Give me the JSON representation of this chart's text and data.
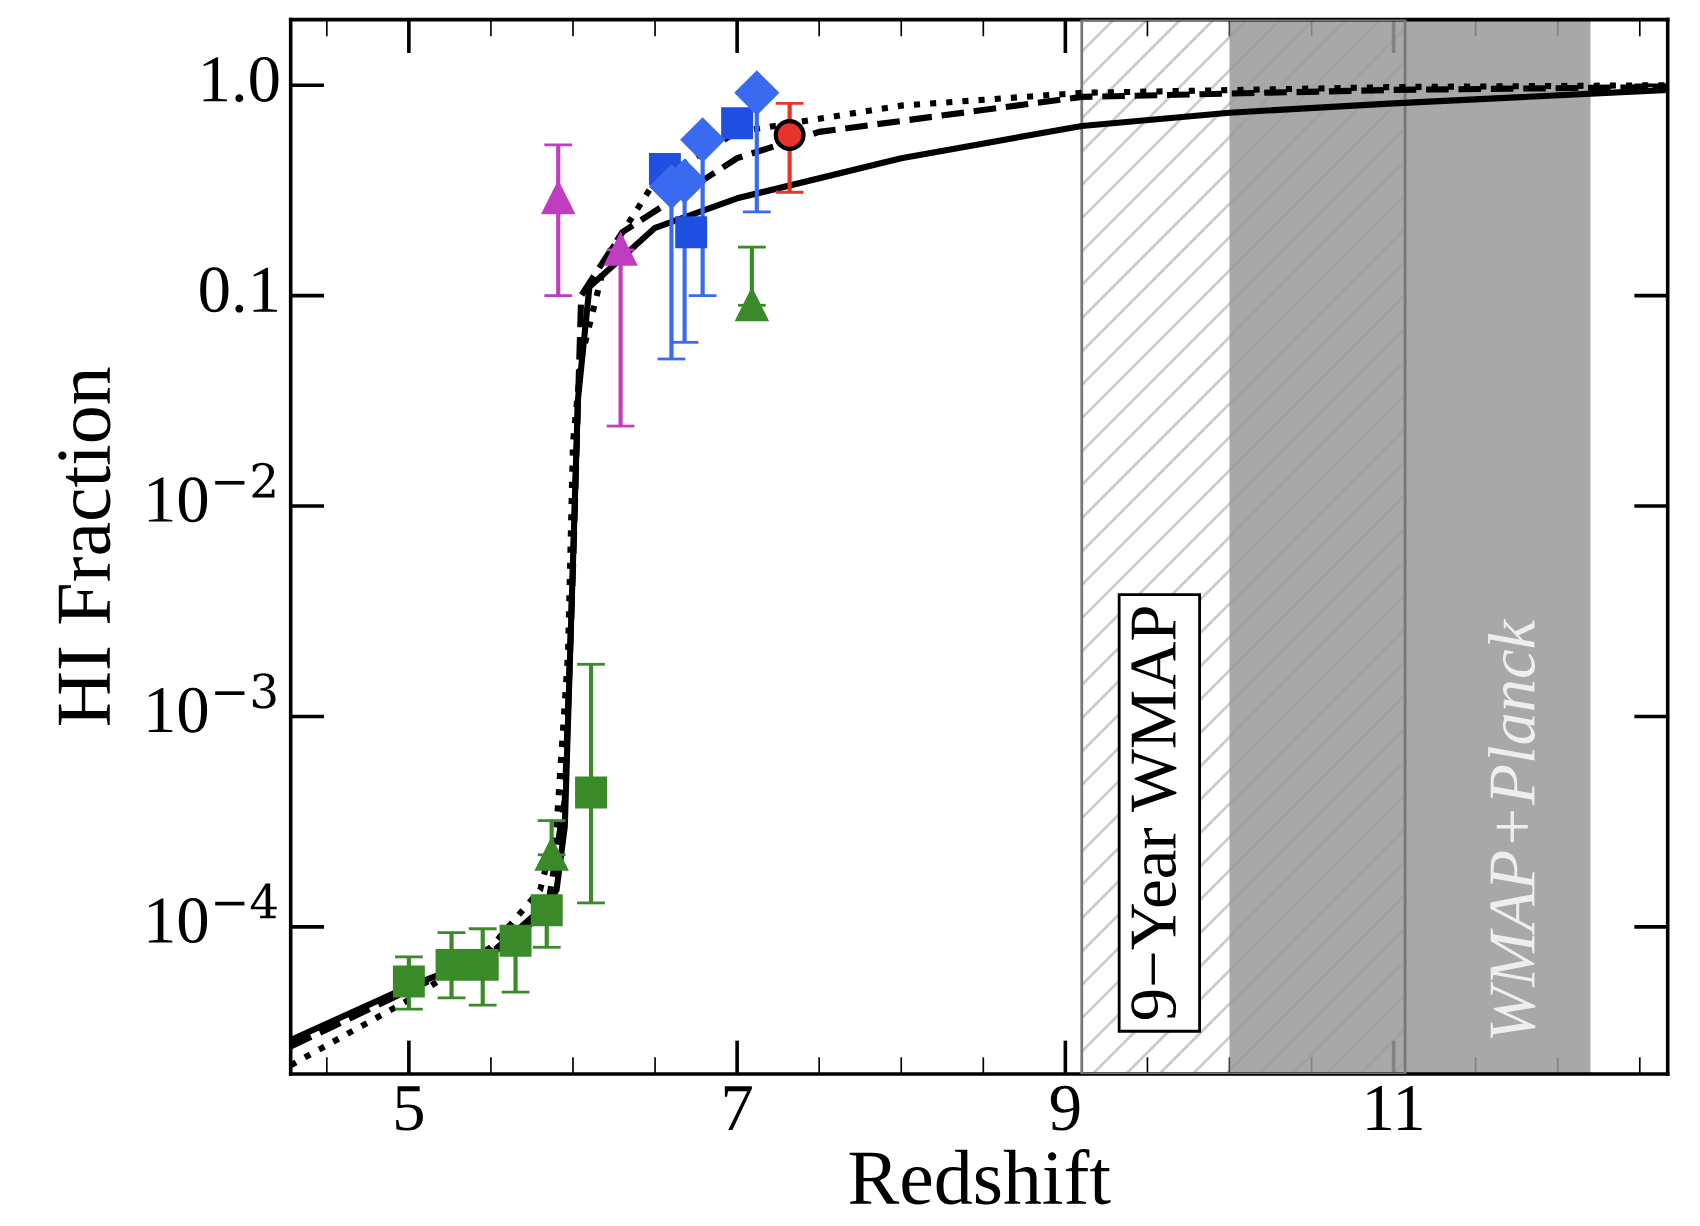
{
  "chart_data": {
    "type": "line",
    "xlabel": "Redshift",
    "ylabel": "HI Fraction",
    "log": "y",
    "grid": false,
    "legend": false,
    "xlim": [
      4.28,
      12.67
    ],
    "ylim": [
      2e-05,
      2.05
    ],
    "xticks": [
      {
        "value": 4.5,
        "label": null
      },
      5,
      {
        "value": 5.5,
        "label": null
      },
      {
        "value": 6,
        "label": null
      },
      {
        "value": 6.5,
        "label": null
      },
      7,
      {
        "value": 7.5,
        "label": null
      },
      {
        "value": 8,
        "label": null
      },
      {
        "value": 8.5,
        "label": null
      },
      9,
      {
        "value": 9.5,
        "label": null
      },
      {
        "value": 10,
        "label": null
      },
      {
        "value": 10.5,
        "label": null
      },
      11,
      {
        "value": 11.5,
        "label": null
      },
      {
        "value": 12,
        "label": null
      },
      {
        "value": 12.5,
        "label": null
      }
    ],
    "yticks": [
      {
        "value": 0.0001,
        "label": "10$^{−4}$"
      },
      {
        "value": 0.001,
        "label": "10$^{−3}$"
      },
      {
        "value": 0.01,
        "label": "10$^{−2}$"
      },
      {
        "value": 0.1,
        "label": "0.1"
      },
      {
        "value": 1,
        "label": "1.0"
      }
    ],
    "bands": [
      {
        "axis": "x",
        "from": 9.1,
        "to": 11.07,
        "label": "9−Year WMAP",
        "color": "#ffffff"
      },
      {
        "axis": "x",
        "from": 10.0,
        "to": 12.2,
        "label": "WMAP+Planck",
        "color": "#999999"
      }
    ],
    "series": [
      {
        "color": "#000000",
        "line_style": "solid",
        "marker": "none",
        "x": [
          4.28,
          5.0,
          5.5,
          5.8,
          5.9,
          5.95,
          6.0,
          6.03,
          6.1,
          6.5,
          7.0,
          8.0,
          9.1,
          10.0,
          11.0,
          12.67
        ],
        "values": [
          2.9e-05,
          5.2e-05,
          7.4e-05,
          0.000112,
          0.00015,
          0.0003,
          0.0055,
          0.032,
          0.11,
          0.21,
          0.29,
          0.45,
          0.64,
          0.74,
          0.82,
          0.95
        ]
      },
      {
        "color": "#000000",
        "line_style": "dashed",
        "marker": "none",
        "x": [
          4.28,
          5.0,
          5.5,
          5.85,
          5.95,
          6.0,
          6.05,
          6.3,
          7.0,
          7.5,
          9.1,
          11.0,
          12.67
        ],
        "values": [
          2.7e-05,
          5e-05,
          7.5e-05,
          0.00013,
          0.0004,
          0.005,
          0.1,
          0.2,
          0.45,
          0.6,
          0.88,
          0.95,
          0.98
        ]
      },
      {
        "color": "#000000",
        "line_style": "dotted",
        "marker": "none",
        "x": [
          4.28,
          5.0,
          5.5,
          5.8,
          5.9,
          5.97,
          6.0,
          6.05,
          6.2,
          6.5,
          7.0,
          8.0,
          9.1,
          11.0,
          12.67
        ],
        "values": [
          2.2e-05,
          4.5e-05,
          8e-05,
          0.00015,
          0.0003,
          0.002,
          0.02,
          0.05,
          0.15,
          0.35,
          0.6,
          0.8,
          0.92,
          0.98,
          1.0
        ]
      },
      {
        "type": "scatter",
        "color": "#3a8a2a",
        "marker": "square",
        "x": [
          5.0,
          5.26,
          5.45,
          5.65,
          5.84,
          6.11
        ],
        "values": [
          5.5e-05,
          6.6e-05,
          6.6e-05,
          8.6e-05,
          0.00012,
          0.000435
        ],
        "errors": [
          [
            4.07e-05,
            7.2e-05
          ],
          [
            4.6e-05,
            9.4e-05
          ],
          [
            4.25e-05,
            9.8e-05
          ],
          [
            4.9e-05,
            9.8e-05
          ],
          [
            8e-05,
            0.000133
          ],
          [
            0.00013,
            0.00177
          ]
        ]
      },
      {
        "type": "scatter",
        "color": "#3a8a2a",
        "marker": "triangle",
        "x": [
          5.87,
          7.09
        ],
        "values": [
          0.00022,
          0.09
        ],
        "errors": [
          [
            0.00022,
            0.00032
          ],
          [
            0.09,
            0.17
          ]
        ]
      },
      {
        "type": "scatter",
        "color": "#c03cc0",
        "marker": "triangle",
        "x": [
          5.91,
          6.29
        ],
        "values": [
          0.29,
          0.165
        ],
        "errors": [
          [
            0.1,
            0.52
          ],
          [
            0.024,
            0.165
          ]
        ]
      },
      {
        "type": "scatter",
        "color": "#1f4fe0",
        "marker": "square",
        "x": [
          6.56,
          6.72,
          7.0
        ],
        "values": [
          0.4,
          0.2,
          0.66
        ]
      },
      {
        "type": "scatter",
        "color": "#3a6af0",
        "marker": "diamond",
        "x": [
          6.6,
          6.68,
          6.79,
          7.12
        ],
        "values": [
          0.33,
          0.35,
          0.55,
          0.92
        ],
        "errors": [
          [
            0.05,
            0.33
          ],
          [
            0.06,
            0.35
          ],
          [
            0.1,
            0.55
          ],
          [
            0.25,
            0.92
          ]
        ]
      },
      {
        "type": "scatter",
        "color": "#e8332a",
        "marker": "circle",
        "x": [
          7.32
        ],
        "values": [
          0.58
        ],
        "errors": [
          [
            0.31,
            0.82
          ]
        ]
      }
    ]
  }
}
